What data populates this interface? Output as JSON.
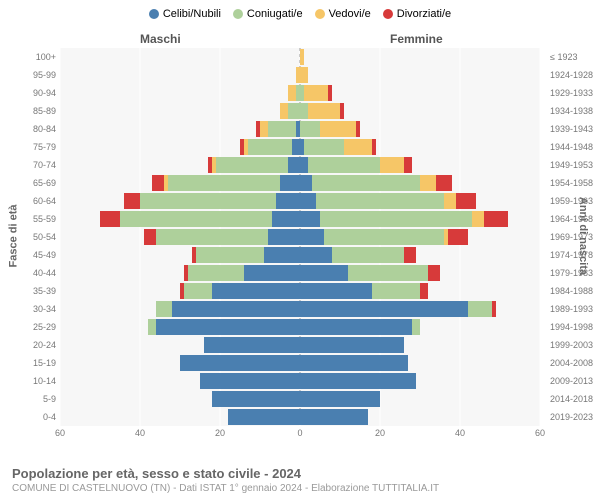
{
  "legend": [
    {
      "label": "Celibi/Nubili",
      "color": "#4a7fb0"
    },
    {
      "label": "Coniugati/e",
      "color": "#aed09b"
    },
    {
      "label": "Vedovi/e",
      "color": "#f6c667"
    },
    {
      "label": "Divorziati/e",
      "color": "#d73a3a"
    }
  ],
  "column_headers": {
    "male": "Maschi",
    "female": "Femmine"
  },
  "axis_labels": {
    "left": "Fasce di età",
    "right": "Anni di nascita"
  },
  "x_axis": {
    "max": 60,
    "ticks": [
      60,
      40,
      20,
      0,
      20,
      40,
      60
    ]
  },
  "categories": [
    {
      "age": "100+",
      "birth": "≤ 1923",
      "m": [
        0,
        0,
        0,
        0
      ],
      "f": [
        0,
        0,
        1,
        0
      ]
    },
    {
      "age": "95-99",
      "birth": "1924-1928",
      "m": [
        0,
        0,
        1,
        0
      ],
      "f": [
        0,
        0,
        2,
        0
      ]
    },
    {
      "age": "90-94",
      "birth": "1929-1933",
      "m": [
        0,
        1,
        2,
        0
      ],
      "f": [
        0,
        1,
        6,
        1
      ]
    },
    {
      "age": "85-89",
      "birth": "1934-1938",
      "m": [
        0,
        3,
        2,
        0
      ],
      "f": [
        0,
        2,
        8,
        1
      ]
    },
    {
      "age": "80-84",
      "birth": "1939-1943",
      "m": [
        1,
        7,
        2,
        1
      ],
      "f": [
        0,
        5,
        9,
        1
      ]
    },
    {
      "age": "75-79",
      "birth": "1944-1948",
      "m": [
        2,
        11,
        1,
        1
      ],
      "f": [
        1,
        10,
        7,
        1
      ]
    },
    {
      "age": "70-74",
      "birth": "1949-1953",
      "m": [
        3,
        18,
        1,
        1
      ],
      "f": [
        2,
        18,
        6,
        2
      ]
    },
    {
      "age": "65-69",
      "birth": "1954-1958",
      "m": [
        5,
        28,
        1,
        3
      ],
      "f": [
        3,
        27,
        4,
        4
      ]
    },
    {
      "age": "60-64",
      "birth": "1959-1963",
      "m": [
        6,
        34,
        0,
        4
      ],
      "f": [
        4,
        32,
        3,
        5
      ]
    },
    {
      "age": "55-59",
      "birth": "1964-1968",
      "m": [
        7,
        38,
        0,
        5
      ],
      "f": [
        5,
        38,
        3,
        6
      ]
    },
    {
      "age": "50-54",
      "birth": "1969-1973",
      "m": [
        8,
        28,
        0,
        3
      ],
      "f": [
        6,
        30,
        1,
        5
      ]
    },
    {
      "age": "45-49",
      "birth": "1974-1978",
      "m": [
        9,
        17,
        0,
        1
      ],
      "f": [
        8,
        18,
        0,
        3
      ]
    },
    {
      "age": "40-44",
      "birth": "1979-1983",
      "m": [
        14,
        14,
        0,
        1
      ],
      "f": [
        12,
        20,
        0,
        3
      ]
    },
    {
      "age": "35-39",
      "birth": "1984-1988",
      "m": [
        22,
        7,
        0,
        1
      ],
      "f": [
        18,
        12,
        0,
        2
      ]
    },
    {
      "age": "30-34",
      "birth": "1989-1993",
      "m": [
        32,
        4,
        0,
        0
      ],
      "f": [
        42,
        6,
        0,
        1
      ]
    },
    {
      "age": "25-29",
      "birth": "1994-1998",
      "m": [
        36,
        2,
        0,
        0
      ],
      "f": [
        28,
        2,
        0,
        0
      ]
    },
    {
      "age": "20-24",
      "birth": "1999-2003",
      "m": [
        24,
        0,
        0,
        0
      ],
      "f": [
        26,
        0,
        0,
        0
      ]
    },
    {
      "age": "15-19",
      "birth": "2004-2008",
      "m": [
        30,
        0,
        0,
        0
      ],
      "f": [
        27,
        0,
        0,
        0
      ]
    },
    {
      "age": "10-14",
      "birth": "2009-2013",
      "m": [
        25,
        0,
        0,
        0
      ],
      "f": [
        29,
        0,
        0,
        0
      ]
    },
    {
      "age": "5-9",
      "birth": "2014-2018",
      "m": [
        22,
        0,
        0,
        0
      ],
      "f": [
        20,
        0,
        0,
        0
      ]
    },
    {
      "age": "0-4",
      "birth": "2019-2023",
      "m": [
        18,
        0,
        0,
        0
      ],
      "f": [
        17,
        0,
        0,
        0
      ]
    }
  ],
  "style": {
    "background": "#ffffff",
    "plot_bg": "#f7f7f7",
    "grid_color": "#ffffff",
    "tick_color": "#777777"
  },
  "footer": {
    "title": "Popolazione per età, sesso e stato civile - 2024",
    "subtitle": "COMUNE DI CASTELNUOVO (TN) - Dati ISTAT 1° gennaio 2024 - Elaborazione TUTTITALIA.IT"
  }
}
